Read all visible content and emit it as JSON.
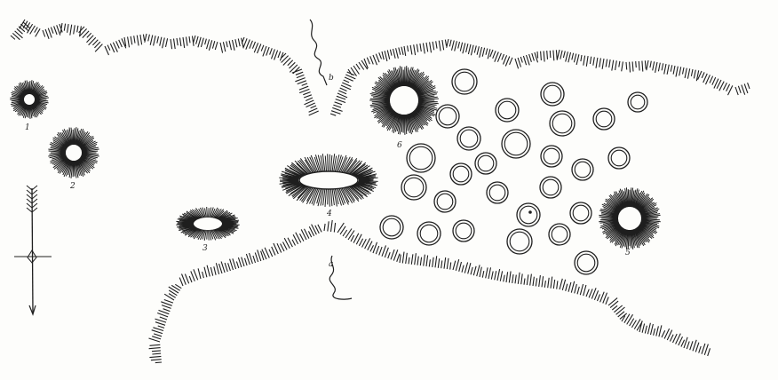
{
  "ink_color": "#1e1e1e",
  "paper_color": "#fdfdfb",
  "labels": {
    "mound_1": "1",
    "mound_2": "2",
    "mound_3": "3",
    "mound_4": "4",
    "mound_5": "5",
    "mound_6": "6",
    "stream_upper": "b",
    "stream_lower": "a"
  },
  "icons": {
    "north_arrow": "north-arrow-icon",
    "hachure_mound": "hachured-mound-icon",
    "pit_ring": "double-ring-pit-icon"
  }
}
